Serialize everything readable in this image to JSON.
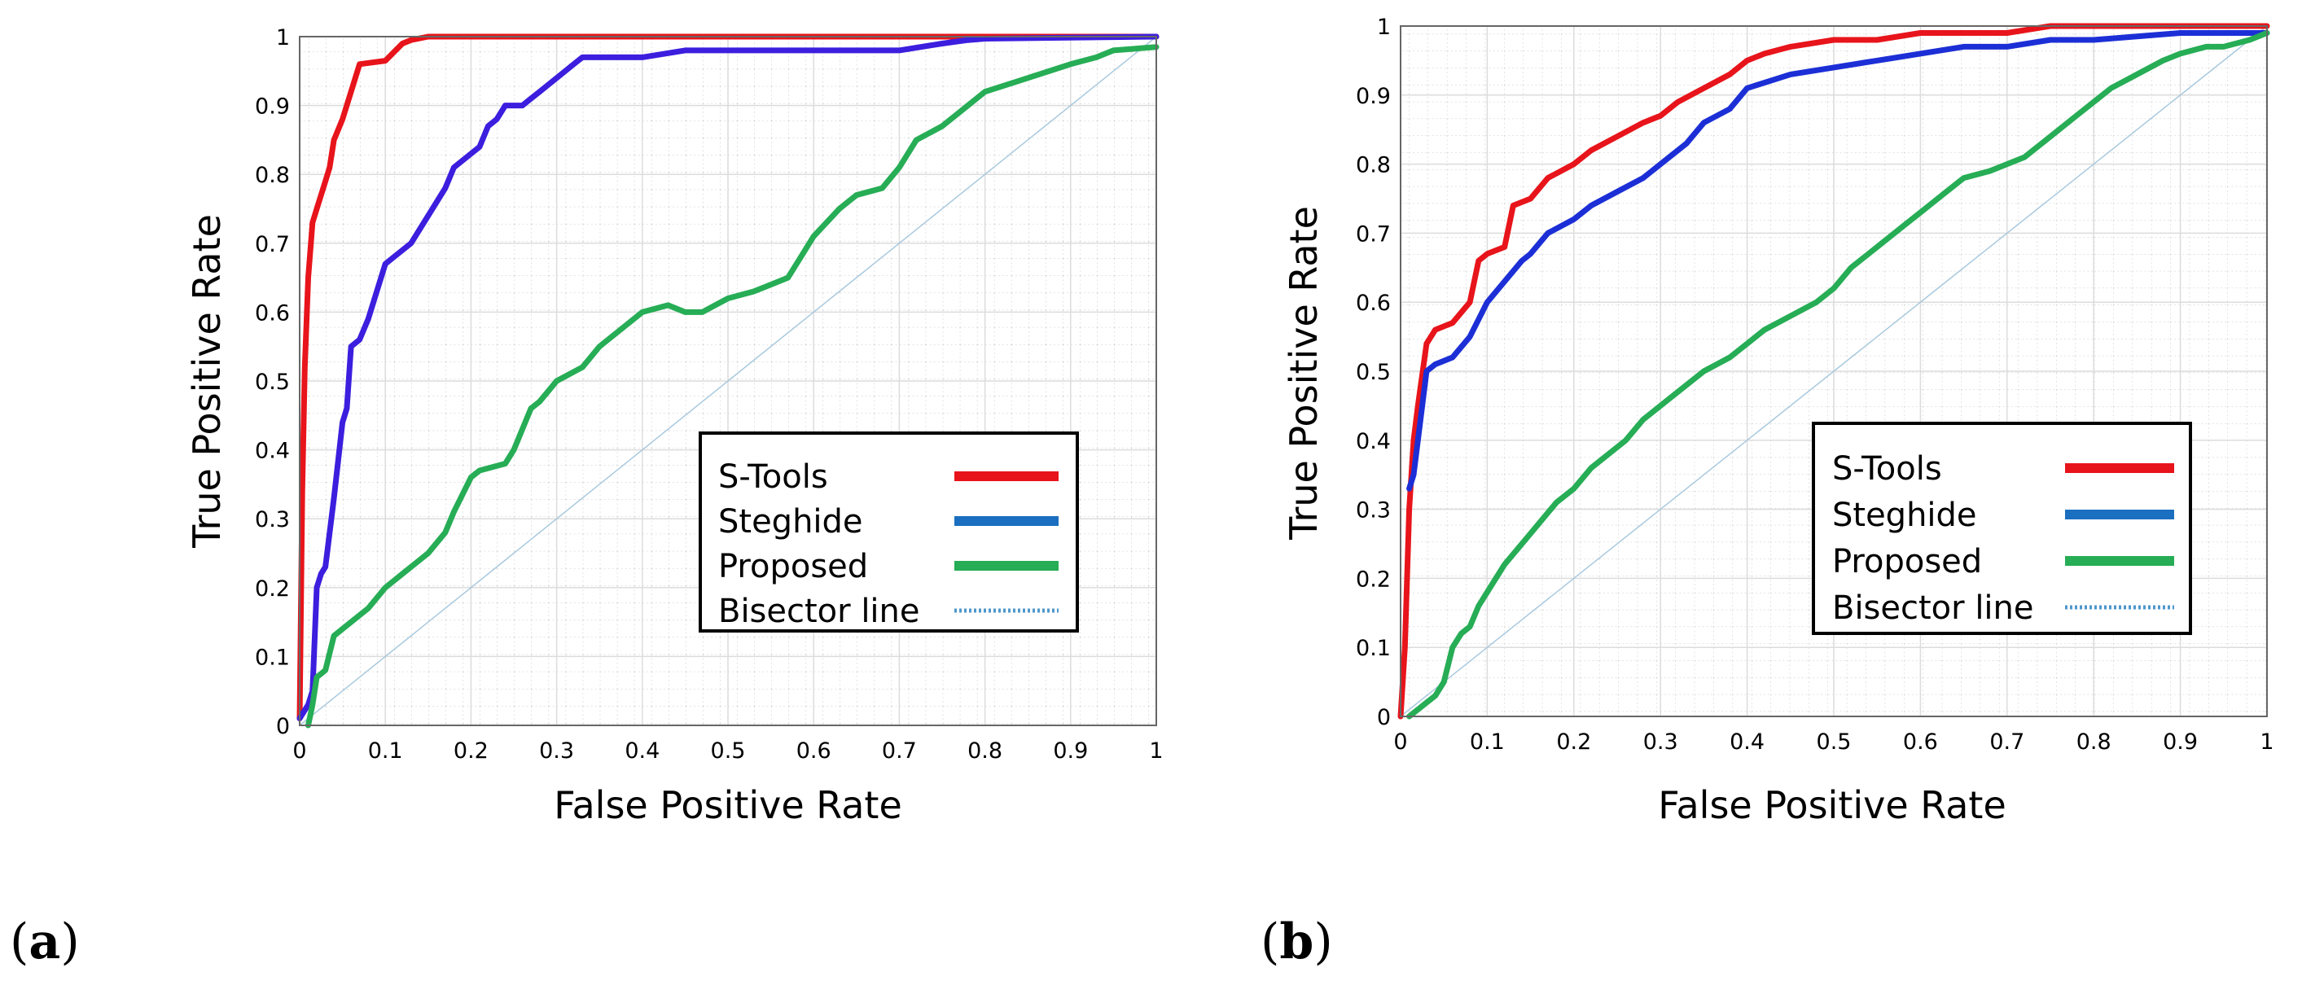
{
  "panels": [
    {
      "label_open": "(",
      "label_letter": "a",
      "label_close": ")"
    },
    {
      "label_open": "(",
      "label_letter": "b",
      "label_close": ")"
    }
  ],
  "colors": {
    "s_tools": "#e8141b",
    "steghide_a": "#3c1ede",
    "steghide_b": "#1c2fd6",
    "proposed": "#26ad55",
    "bisector": "#a9c9de",
    "legend_steghide": "#1b6fc0",
    "legend_bisector": "#4f97cc"
  },
  "chart_data": [
    {
      "type": "line",
      "title": "",
      "xlabel": "False Positive Rate",
      "ylabel": "True Positive Rate",
      "xlim": [
        0,
        1
      ],
      "ylim": [
        0,
        1
      ],
      "xticks": [
        "0",
        "0.1",
        "0.2",
        "0.3",
        "0.4",
        "0.5",
        "0.6",
        "0.7",
        "0.8",
        "0.9",
        "1"
      ],
      "yticks": [
        "0",
        "0.1",
        "0.2",
        "0.3",
        "0.4",
        "0.5",
        "0.6",
        "0.7",
        "0.8",
        "0.9",
        "1"
      ],
      "grid": true,
      "legend_position": "bottom-right",
      "series": [
        {
          "name": "S-Tools",
          "x": [
            0,
            0.003,
            0.006,
            0.01,
            0.015,
            0.02,
            0.025,
            0.03,
            0.035,
            0.04,
            0.05,
            0.06,
            0.07,
            0.1,
            0.12,
            0.13,
            0.15,
            1
          ],
          "y": [
            0.01,
            0.34,
            0.52,
            0.65,
            0.73,
            0.75,
            0.77,
            0.79,
            0.81,
            0.85,
            0.88,
            0.92,
            0.96,
            0.965,
            0.99,
            0.995,
            1,
            1
          ]
        },
        {
          "name": "Steghide",
          "x": [
            0,
            0.01,
            0.015,
            0.02,
            0.025,
            0.03,
            0.04,
            0.05,
            0.055,
            0.06,
            0.07,
            0.08,
            0.09,
            0.1,
            0.11,
            0.13,
            0.14,
            0.15,
            0.17,
            0.18,
            0.2,
            0.21,
            0.22,
            0.23,
            0.24,
            0.26,
            0.27,
            0.28,
            0.3,
            0.31,
            0.32,
            0.33,
            0.4,
            0.45,
            0.5,
            0.6,
            0.7,
            0.75,
            0.78,
            0.8,
            1
          ],
          "y": [
            0.01,
            0.03,
            0.05,
            0.2,
            0.22,
            0.23,
            0.33,
            0.44,
            0.46,
            0.55,
            0.56,
            0.59,
            0.63,
            0.67,
            0.68,
            0.7,
            0.72,
            0.74,
            0.78,
            0.81,
            0.83,
            0.84,
            0.87,
            0.88,
            0.9,
            0.9,
            0.91,
            0.92,
            0.94,
            0.95,
            0.96,
            0.97,
            0.97,
            0.98,
            0.98,
            0.98,
            0.98,
            0.99,
            0.995,
            0.997,
            1
          ]
        },
        {
          "name": "Proposed",
          "x": [
            0.01,
            0.015,
            0.02,
            0.03,
            0.04,
            0.06,
            0.08,
            0.1,
            0.12,
            0.15,
            0.17,
            0.18,
            0.2,
            0.21,
            0.24,
            0.25,
            0.26,
            0.27,
            0.28,
            0.3,
            0.33,
            0.35,
            0.37,
            0.4,
            0.43,
            0.45,
            0.47,
            0.5,
            0.53,
            0.55,
            0.57,
            0.58,
            0.6,
            0.63,
            0.65,
            0.68,
            0.7,
            0.72,
            0.75,
            0.78,
            0.8,
            0.85,
            0.9,
            0.93,
            0.95,
            1
          ],
          "y": [
            0,
            0.03,
            0.07,
            0.08,
            0.13,
            0.15,
            0.17,
            0.2,
            0.22,
            0.25,
            0.28,
            0.31,
            0.36,
            0.37,
            0.38,
            0.4,
            0.43,
            0.46,
            0.47,
            0.5,
            0.52,
            0.55,
            0.57,
            0.6,
            0.61,
            0.6,
            0.6,
            0.62,
            0.63,
            0.64,
            0.65,
            0.67,
            0.71,
            0.75,
            0.77,
            0.78,
            0.81,
            0.85,
            0.87,
            0.9,
            0.92,
            0.94,
            0.96,
            0.97,
            0.98,
            0.985
          ]
        },
        {
          "name": "Bisector line",
          "x": [
            0,
            1
          ],
          "y": [
            0,
            1
          ]
        }
      ]
    },
    {
      "type": "line",
      "title": "",
      "xlabel": "False Positive Rate",
      "ylabel": "True Positive Rate",
      "xlim": [
        0,
        1
      ],
      "ylim": [
        0,
        1
      ],
      "xticks": [
        "0",
        "0.1",
        "0.2",
        "0.3",
        "0.4",
        "0.5",
        "0.6",
        "0.7",
        "0.8",
        "0.9",
        "1"
      ],
      "yticks": [
        "0",
        "0.1",
        "0.2",
        "0.3",
        "0.4",
        "0.5",
        "0.6",
        "0.7",
        "0.8",
        "0.9",
        "1"
      ],
      "grid": true,
      "legend_position": "bottom-right",
      "series": [
        {
          "name": "S-Tools",
          "x": [
            0,
            0.005,
            0.01,
            0.015,
            0.02,
            0.03,
            0.04,
            0.06,
            0.08,
            0.09,
            0.1,
            0.12,
            0.13,
            0.15,
            0.17,
            0.2,
            0.22,
            0.25,
            0.28,
            0.3,
            0.32,
            0.35,
            0.38,
            0.4,
            0.42,
            0.45,
            0.5,
            0.55,
            0.6,
            0.65,
            0.7,
            0.75,
            0.8,
            0.9,
            1
          ],
          "y": [
            0,
            0.1,
            0.3,
            0.4,
            0.45,
            0.54,
            0.56,
            0.57,
            0.6,
            0.66,
            0.67,
            0.68,
            0.74,
            0.75,
            0.78,
            0.8,
            0.82,
            0.84,
            0.86,
            0.87,
            0.89,
            0.91,
            0.93,
            0.95,
            0.96,
            0.97,
            0.98,
            0.98,
            0.99,
            0.99,
            0.99,
            1,
            1,
            1,
            1
          ]
        },
        {
          "name": "Steghide",
          "x": [
            0.01,
            0.015,
            0.02,
            0.025,
            0.03,
            0.04,
            0.06,
            0.08,
            0.1,
            0.12,
            0.14,
            0.15,
            0.17,
            0.2,
            0.22,
            0.25,
            0.28,
            0.3,
            0.33,
            0.35,
            0.38,
            0.4,
            0.45,
            0.5,
            0.55,
            0.6,
            0.65,
            0.7,
            0.75,
            0.8,
            0.9,
            1
          ],
          "y": [
            0.33,
            0.35,
            0.4,
            0.45,
            0.5,
            0.51,
            0.52,
            0.55,
            0.6,
            0.63,
            0.66,
            0.67,
            0.7,
            0.72,
            0.74,
            0.76,
            0.78,
            0.8,
            0.83,
            0.86,
            0.88,
            0.91,
            0.93,
            0.94,
            0.95,
            0.96,
            0.97,
            0.97,
            0.98,
            0.98,
            0.99,
            0.99
          ]
        },
        {
          "name": "Proposed",
          "x": [
            0.01,
            0.02,
            0.03,
            0.04,
            0.05,
            0.06,
            0.07,
            0.08,
            0.09,
            0.1,
            0.12,
            0.14,
            0.16,
            0.18,
            0.2,
            0.22,
            0.24,
            0.26,
            0.28,
            0.3,
            0.32,
            0.35,
            0.38,
            0.4,
            0.42,
            0.45,
            0.48,
            0.5,
            0.52,
            0.55,
            0.58,
            0.6,
            0.63,
            0.65,
            0.68,
            0.7,
            0.72,
            0.75,
            0.78,
            0.8,
            0.82,
            0.85,
            0.88,
            0.9,
            0.93,
            0.95,
            0.98,
            1
          ],
          "y": [
            0,
            0.01,
            0.02,
            0.03,
            0.05,
            0.1,
            0.12,
            0.13,
            0.16,
            0.18,
            0.22,
            0.25,
            0.28,
            0.31,
            0.33,
            0.36,
            0.38,
            0.4,
            0.43,
            0.45,
            0.47,
            0.5,
            0.52,
            0.54,
            0.56,
            0.58,
            0.6,
            0.62,
            0.65,
            0.68,
            0.71,
            0.73,
            0.76,
            0.78,
            0.79,
            0.8,
            0.81,
            0.84,
            0.87,
            0.89,
            0.91,
            0.93,
            0.95,
            0.96,
            0.97,
            0.97,
            0.98,
            0.99
          ]
        },
        {
          "name": "Bisector line",
          "x": [
            0,
            1
          ],
          "y": [
            0,
            1
          ]
        }
      ]
    }
  ]
}
